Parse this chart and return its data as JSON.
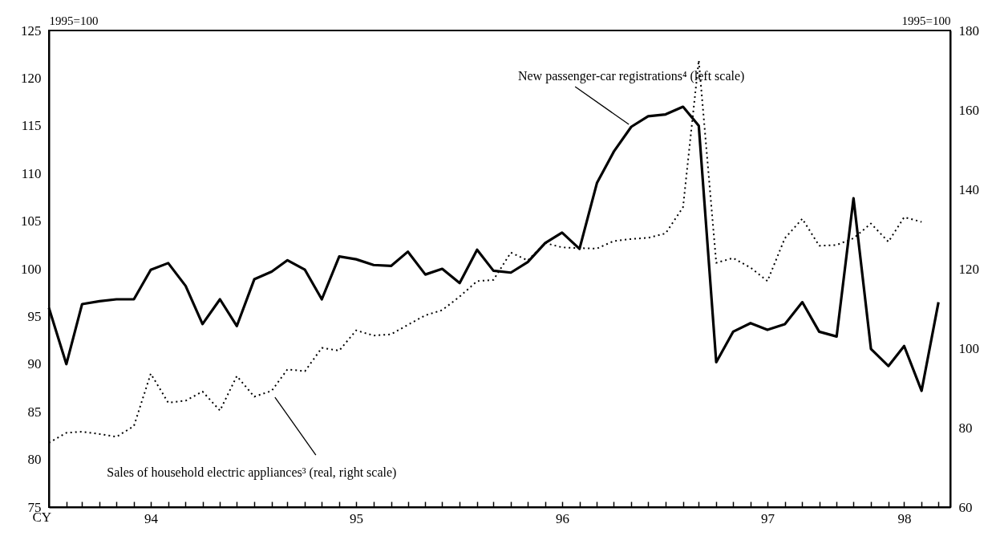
{
  "chart_data": {
    "type": "line",
    "x": [
      "1994-01",
      "1994-02",
      "1994-03",
      "1994-04",
      "1994-05",
      "1994-06",
      "1994-07",
      "1994-08",
      "1994-09",
      "1994-10",
      "1994-11",
      "1994-12",
      "1995-01",
      "1995-02",
      "1995-03",
      "1995-04",
      "1995-05",
      "1995-06",
      "1995-07",
      "1995-08",
      "1995-09",
      "1995-10",
      "1995-11",
      "1995-12",
      "1996-01",
      "1996-02",
      "1996-03",
      "1996-04",
      "1996-05",
      "1996-06",
      "1996-07",
      "1996-08",
      "1996-09",
      "1996-10",
      "1996-11",
      "1996-12",
      "1997-01",
      "1997-02",
      "1997-03",
      "1997-04",
      "1997-05",
      "1997-06",
      "1997-07",
      "1997-08",
      "1997-09",
      "1997-10",
      "1997-11",
      "1997-12",
      "1998-01",
      "1998-02",
      "1998-03",
      "1998-04",
      "1998-05"
    ],
    "series": [
      {
        "color": "#000000",
        "line_style": "solid",
        "values": [
          95.9,
          90.0,
          96.3,
          96.6,
          96.8,
          96.8,
          99.9,
          100.6,
          98.2,
          94.2,
          96.8,
          94.0,
          98.9,
          99.7,
          100.9,
          99.9,
          96.8,
          101.3,
          101.0,
          100.4,
          100.3,
          101.8,
          99.4,
          100.0,
          98.5,
          102.0,
          99.8,
          99.6,
          100.7,
          102.7,
          103.8,
          102.1,
          109.0,
          112.3,
          114.9,
          116.0,
          116.2,
          117.0,
          115.0,
          90.2,
          93.4,
          94.3,
          93.6,
          94.2,
          96.5,
          93.4,
          92.9,
          107.4,
          91.6,
          89.8,
          91.9,
          87.2,
          96.5
        ]
      },
      {
        "color": "#000000",
        "line_style": "dotted",
        "axis": "y2",
        "values": [
          76.2,
          78.7,
          79.0,
          78.4,
          77.7,
          80.4,
          93.6,
          86.3,
          86.8,
          89.1,
          84.3,
          93.0,
          87.8,
          89.3,
          94.7,
          94.2,
          100.1,
          99.4,
          104.5,
          103.2,
          103.5,
          105.9,
          108.3,
          109.6,
          113.0,
          116.9,
          117.2,
          124.1,
          122.1,
          126.5,
          125.4,
          125.2,
          125.1,
          127.0,
          127.5,
          127.8,
          128.9,
          135.5,
          172.5,
          121.5,
          122.7,
          120.3,
          116.9,
          127.7,
          132.6,
          125.8,
          126.0,
          127.7,
          131.4,
          126.8,
          133.0,
          131.8,
          null
        ]
      }
    ],
    "xlabel": "CY",
    "xlim": [
      "1994-01-01",
      "1998-05-22"
    ],
    "xticks": [
      {
        "value": "1994-02",
        "label": null
      },
      {
        "value": "1994-03",
        "label": null
      },
      {
        "value": "1994-04",
        "label": null
      },
      {
        "value": "1994-05",
        "label": null
      },
      {
        "value": "1994-06",
        "label": null
      },
      {
        "value": "1994-07",
        "label": null
      },
      {
        "value": "1994-08",
        "label": null
      },
      {
        "value": "1994-09",
        "label": null
      },
      {
        "value": "1994-10",
        "label": null
      },
      {
        "value": "1994-11",
        "label": null
      },
      {
        "value": "1994-12",
        "label": null
      },
      {
        "value": "1995-01",
        "label": null
      },
      {
        "value": "1995-02",
        "label": null
      },
      {
        "value": "1995-03",
        "label": null
      },
      {
        "value": "1995-04",
        "label": null
      },
      {
        "value": "1995-05",
        "label": null
      },
      {
        "value": "1995-06",
        "label": null
      },
      {
        "value": "1995-07",
        "label": null
      },
      {
        "value": "1995-08",
        "label": null
      },
      {
        "value": "1995-09",
        "label": null
      },
      {
        "value": "1995-10",
        "label": null
      },
      {
        "value": "1995-11",
        "label": null
      },
      {
        "value": "1995-12",
        "label": null
      },
      {
        "value": "1996-01",
        "label": null
      },
      {
        "value": "1996-02",
        "label": null
      },
      {
        "value": "1996-03",
        "label": null
      },
      {
        "value": "1996-04",
        "label": null
      },
      {
        "value": "1996-05",
        "label": null
      },
      {
        "value": "1996-06",
        "label": null
      },
      {
        "value": "1996-07",
        "label": null
      },
      {
        "value": "1996-08",
        "label": null
      },
      {
        "value": "1996-09",
        "label": null
      },
      {
        "value": "1996-10",
        "label": null
      },
      {
        "value": "1996-11",
        "label": null
      },
      {
        "value": "1996-12",
        "label": null
      },
      {
        "value": "1997-01",
        "label": null
      },
      {
        "value": "1997-02",
        "label": null
      },
      {
        "value": "1997-03",
        "label": null
      },
      {
        "value": "1997-04",
        "label": null
      },
      {
        "value": "1997-05",
        "label": null
      },
      {
        "value": "1997-06",
        "label": null
      },
      {
        "value": "1997-07",
        "label": null
      },
      {
        "value": "1997-08",
        "label": null
      },
      {
        "value": "1997-09",
        "label": null
      },
      {
        "value": "1997-10",
        "label": null
      },
      {
        "value": "1997-11",
        "label": null
      },
      {
        "value": "1997-12",
        "label": null
      },
      {
        "value": "1998-01",
        "label": null
      },
      {
        "value": "1998-02",
        "label": null
      },
      {
        "value": "1998-03",
        "label": null
      },
      {
        "value": "1998-04",
        "label": null
      },
      {
        "value": "1998-05",
        "label": null
      },
      {
        "value": "1994-07-01",
        "label": "94"
      },
      {
        "value": "1995-07-01",
        "label": "95"
      },
      {
        "value": "1996-07-01",
        "label": "96"
      },
      {
        "value": "1997-07-01",
        "label": "97"
      },
      {
        "value": "1998-03-01",
        "label": "98"
      }
    ],
    "ylim": [
      75,
      125
    ],
    "yticks": [
      75,
      80,
      85,
      90,
      95,
      100,
      105,
      110,
      115,
      120,
      125
    ],
    "y2lim": [
      60,
      180
    ],
    "y2ticks": [
      60,
      80,
      100,
      120,
      140,
      160,
      180
    ],
    "ylabel": "1995=100",
    "y2label": "1995=100",
    "annotations": [
      {
        "text": "New passenger-car registrations⁴ (left scale)",
        "x": "1996-11",
        "y": 114.9
      },
      {
        "text": "Sales of household electric appliances³ (real, right scale)",
        "x": "1995-02",
        "y": 87.2
      }
    ],
    "grid": false
  }
}
